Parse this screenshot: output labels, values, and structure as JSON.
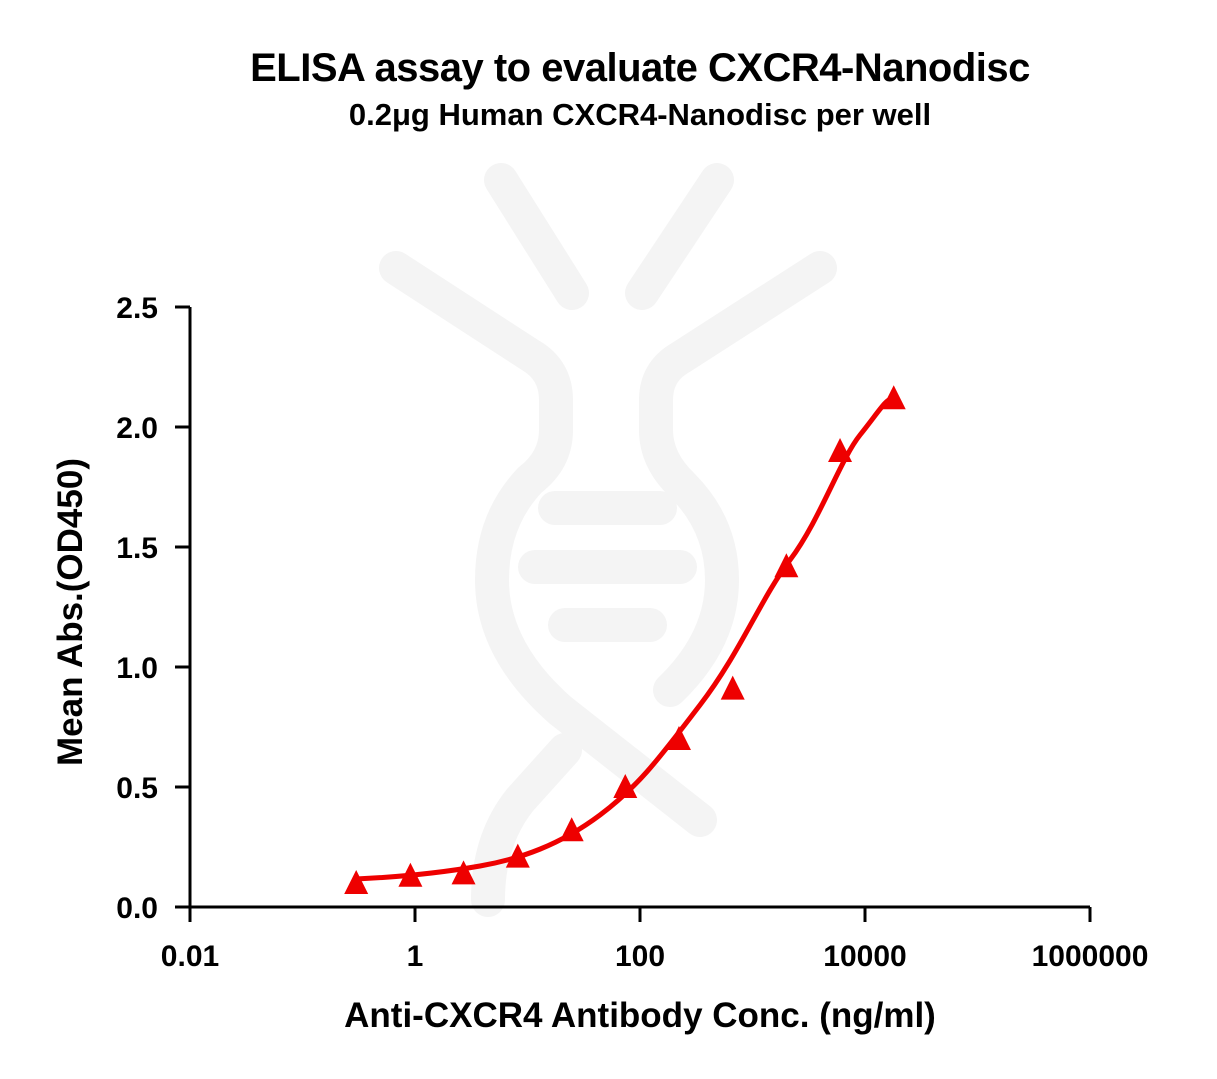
{
  "header": {
    "title": "ELISA assay to evaluate CXCR4-Nanodisc",
    "subtitle": "0.2μg Human CXCR4-Nanodisc per well"
  },
  "axes": {
    "x_label": "Anti-CXCR4 Antibody Conc. (ng/ml)",
    "y_label": "Mean Abs.(OD450)",
    "x_ticks": [
      "0.01",
      "1",
      "100",
      "10000",
      "1000000"
    ],
    "y_ticks": [
      "0.0",
      "0.5",
      "1.0",
      "1.5",
      "2.0",
      "2.5"
    ]
  },
  "colors": {
    "series": "#ee0000",
    "axis": "#000000",
    "watermark": "#f4f4f4"
  },
  "chart_data": {
    "type": "scatter",
    "title": "ELISA assay to evaluate CXCR4-Nanodisc",
    "subtitle": "0.2μg Human CXCR4-Nanodisc per well",
    "xlabel": "Anti-CXCR4 Antibody Conc. (ng/ml)",
    "ylabel": "Mean Abs.(OD450)",
    "xscale": "log",
    "xlim": [
      0.01,
      1000000
    ],
    "ylim": [
      0,
      2.5
    ],
    "x_ticks": [
      0.01,
      1,
      100,
      10000,
      1000000
    ],
    "y_ticks": [
      0.0,
      0.5,
      1.0,
      1.5,
      2.0,
      2.5
    ],
    "grid": false,
    "legend": null,
    "series": [
      {
        "name": "CXCR4-Nanodisc",
        "marker": "triangle",
        "color": "#ee0000",
        "fit": "sigmoidal 4PL curve",
        "x": [
          0.3,
          0.91,
          2.7,
          8.2,
          24.7,
          74,
          222,
          667,
          2000,
          6000,
          18000
        ],
        "y": [
          0.1,
          0.13,
          0.14,
          0.21,
          0.32,
          0.5,
          0.7,
          0.91,
          1.42,
          1.9,
          2.12
        ]
      }
    ]
  }
}
